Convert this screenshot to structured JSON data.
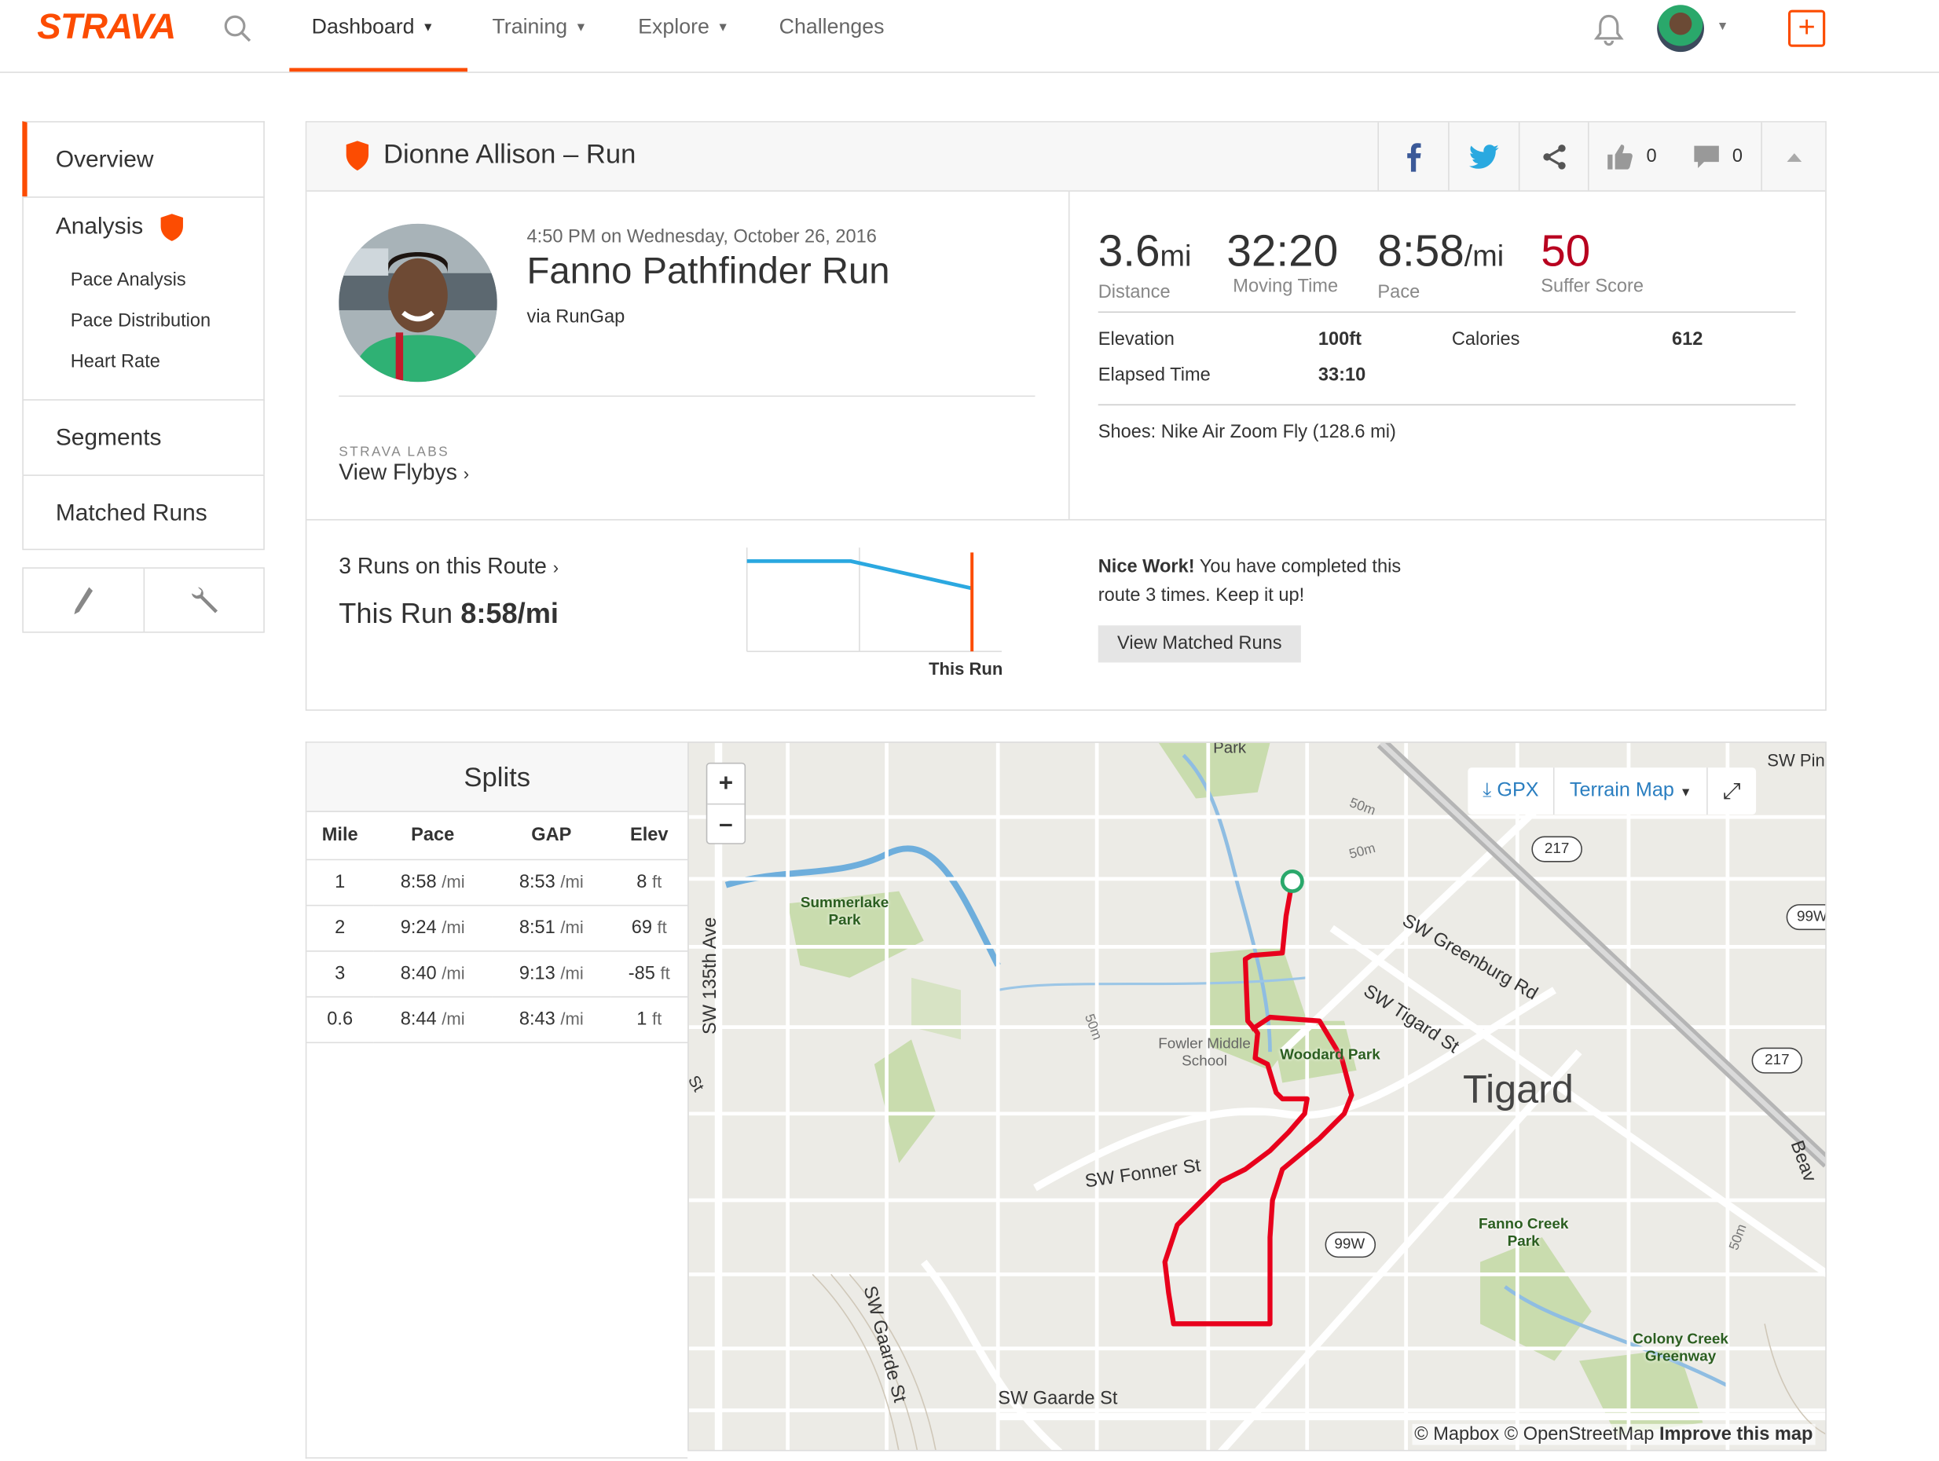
{
  "nav": {
    "logo": "STRAVA",
    "items": [
      {
        "label": "Dashboard"
      },
      {
        "label": "Training"
      },
      {
        "label": "Explore"
      },
      {
        "label": "Challenges"
      }
    ],
    "create_icon": "plus-icon",
    "accent": "#fc4c02"
  },
  "sidebar": {
    "overview": "Overview",
    "analysis": "Analysis",
    "sub": [
      "Pace Analysis",
      "Pace Distribution",
      "Heart Rate"
    ],
    "segments": "Segments",
    "matched_runs": "Matched Runs"
  },
  "activity": {
    "header": "Dionne Allison – Run",
    "kudos": "0",
    "comments": "0",
    "date": "4:50 PM on Wednesday, October 26, 2016",
    "name": "Fanno Pathfinder Run",
    "via": "via RunGap",
    "labs": "STRAVA LABS",
    "flybys": "View Flybys",
    "stats": {
      "distance": {
        "value": "3.6",
        "unit": "mi",
        "label": "Distance"
      },
      "moving_time": {
        "value": "32:20",
        "label": "Moving Time"
      },
      "pace": {
        "value": "8:58",
        "unit": "/mi",
        "label": "Pace"
      },
      "suffer": {
        "value": "50",
        "label": "Suffer Score",
        "color": "#b8001f"
      }
    },
    "elevation_label": "Elevation",
    "elevation": "100ft",
    "calories_label": "Calories",
    "calories": "612",
    "elapsed_label": "Elapsed Time",
    "elapsed": "33:10",
    "shoes": "Shoes: Nike Air Zoom Fly (128.6 mi)"
  },
  "route": {
    "runs": "3 Runs on this Route",
    "this_run_prefix": "This Run ",
    "this_run_pace": "8:58/mi",
    "chart_label": "This Run",
    "nice_bold": "Nice Work!",
    "nice_text": " You have completed this route 3 times. Keep it up!",
    "button": "View Matched Runs"
  },
  "splits": {
    "title": "Splits",
    "headers": [
      "Mile",
      "Pace",
      "GAP",
      "Elev"
    ],
    "rows": [
      {
        "mile": "1",
        "pace": "8:58",
        "gap": "8:53",
        "elev": "8"
      },
      {
        "mile": "2",
        "pace": "9:24",
        "gap": "8:51",
        "elev": "69"
      },
      {
        "mile": "3",
        "pace": "8:40",
        "gap": "9:13",
        "elev": "-85"
      },
      {
        "mile": "0.6",
        "pace": "8:44",
        "gap": "8:43",
        "elev": "1"
      }
    ],
    "pace_unit": "/mi",
    "elev_unit": "ft"
  },
  "map": {
    "gpx": "GPX",
    "terrain": "Terrain Map",
    "zoom_in": "+",
    "zoom_out": "–",
    "labels": {
      "park_top": "Park",
      "sw_pin": "SW Pin",
      "summerlake": "Summerlake Park",
      "sw135": "SW 135th Ave",
      "greenburg": "SW Greenburg Rd",
      "tigard_st": "SW Tigard St",
      "fowler": "Fowler Middle School",
      "woodard": "Woodard Park",
      "tigard": "Tigard",
      "fonner": "SW Fonner St",
      "fanno": "Fanno Creek Park",
      "gaarde_st": "SW Gaarde St",
      "gaarde_vert": "SW Gaarde St",
      "colony": "Colony Creek Greenway",
      "r217a": "217",
      "r217b": "217",
      "r99w": "99W",
      "r99w2": "99W",
      "beav": "Beav",
      "m50a": "50m",
      "m50b": "50m",
      "m50c": "50m",
      "m50d": "50m",
      "st": "St"
    },
    "attribution": "© Mapbox © OpenStreetMap ",
    "improve": "Improve this map",
    "route_color": "#e8001c"
  }
}
